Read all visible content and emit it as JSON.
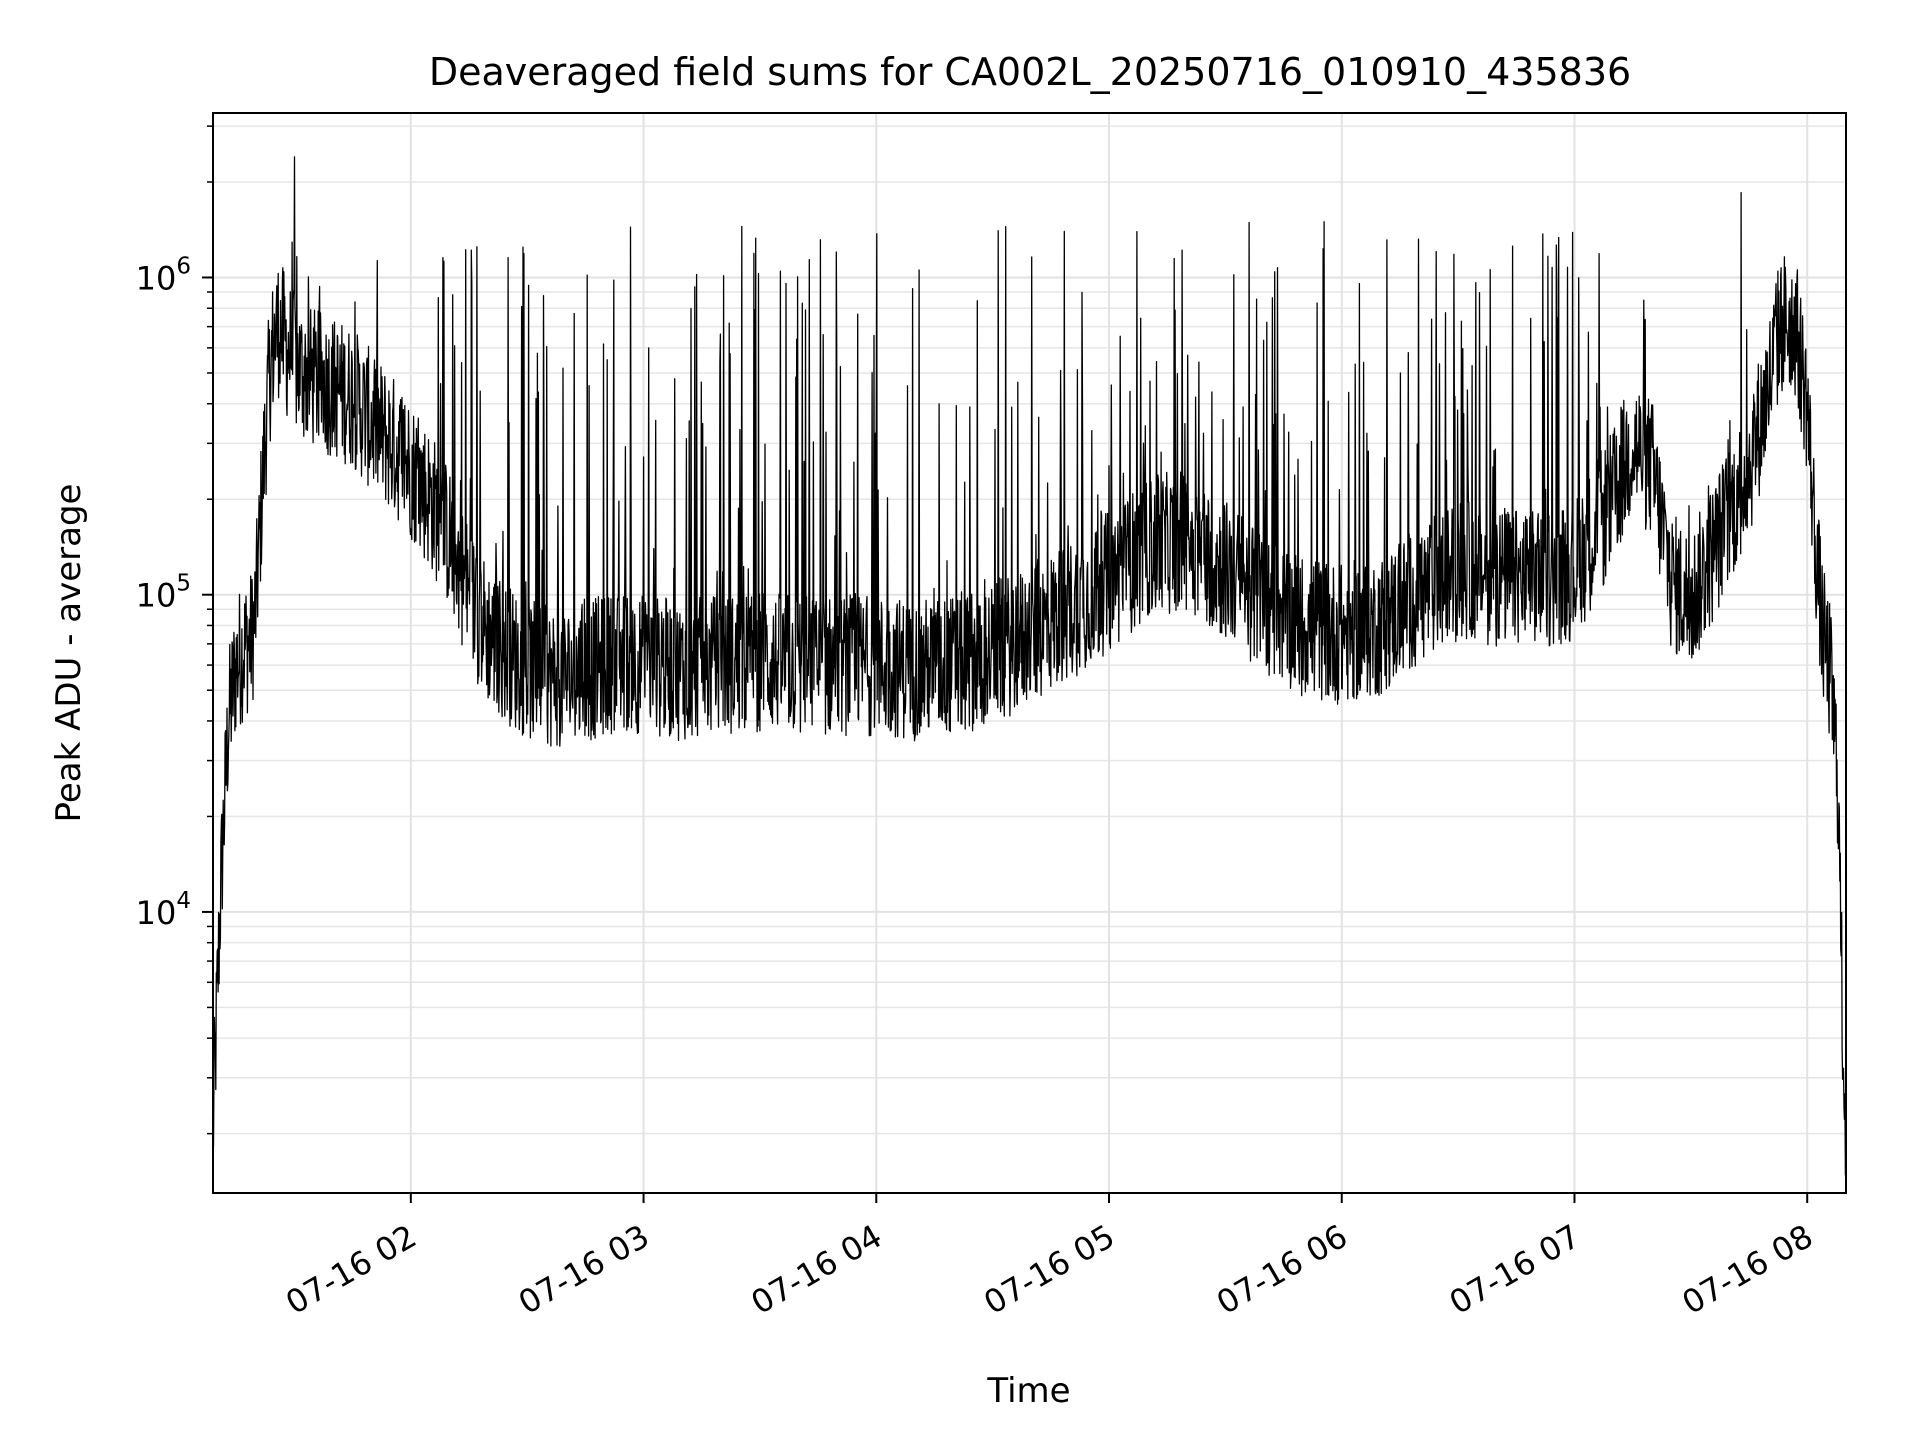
{
  "chart_data": {
    "type": "line",
    "title": "Deaveraged field sums for CA002L_20250716_010910_435836",
    "xlabel": "Time",
    "ylabel": "Peak ADU - average",
    "yscale": "log",
    "grid": true,
    "x_ticks": [
      "07-16 02",
      "07-16 03",
      "07-16 04",
      "07-16 05",
      "07-16 06",
      "07-16 07",
      "07-16 08"
    ],
    "y_ticks": [
      {
        "base": "10",
        "exp": "4",
        "value": 10000
      },
      {
        "base": "10",
        "exp": "5",
        "value": 100000
      },
      {
        "base": "10",
        "exp": "6",
        "value": 1000000
      }
    ],
    "xlim": [
      "2025-07-16 01:09",
      "2025-07-16 08:10"
    ],
    "ylim": [
      1300,
      3300000
    ],
    "line_color": "#000000",
    "series": [
      {
        "x": [
          "2025-07-16 01:09",
          "2025-07-16 01:10",
          "2025-07-16 01:11",
          "2025-07-16 01:12",
          "2025-07-16 01:13",
          "2025-07-16 01:15",
          "2025-07-16 01:17",
          "2025-07-16 01:18",
          "2025-07-16 01:19",
          "2025-07-16 01:20",
          "2025-07-16 01:21",
          "2025-07-16 01:22",
          "2025-07-16 01:23",
          "2025-07-16 01:24",
          "2025-07-16 01:25",
          "2025-07-16 01:26",
          "2025-07-16 01:27",
          "2025-07-16 01:28",
          "2025-07-16 01:30",
          "2025-07-16 01:31",
          "2025-07-16 01:32",
          "2025-07-16 01:35",
          "2025-07-16 01:40",
          "2025-07-16 01:45",
          "2025-07-16 01:50",
          "2025-07-16 01:55",
          "2025-07-16 02:00",
          "2025-07-16 02:05",
          "2025-07-16 02:10",
          "2025-07-16 02:15",
          "2025-07-16 02:20",
          "2025-07-16 02:25",
          "2025-07-16 02:30",
          "2025-07-16 02:35",
          "2025-07-16 02:40",
          "2025-07-16 02:45",
          "2025-07-16 02:50",
          "2025-07-16 02:55",
          "2025-07-16 03:00",
          "2025-07-16 03:10",
          "2025-07-16 03:20",
          "2025-07-16 03:30",
          "2025-07-16 03:40",
          "2025-07-16 03:50",
          "2025-07-16 04:00",
          "2025-07-16 04:10",
          "2025-07-16 04:20",
          "2025-07-16 04:30",
          "2025-07-16 04:40",
          "2025-07-16 04:50",
          "2025-07-16 05:00",
          "2025-07-16 05:10",
          "2025-07-16 05:20",
          "2025-07-16 05:30",
          "2025-07-16 05:40",
          "2025-07-16 05:50",
          "2025-07-16 06:00",
          "2025-07-16 06:10",
          "2025-07-16 06:20",
          "2025-07-16 06:30",
          "2025-07-16 06:40",
          "2025-07-16 06:50",
          "2025-07-16 07:00",
          "2025-07-16 07:10",
          "2025-07-16 07:15",
          "2025-07-16 07:20",
          "2025-07-16 07:25",
          "2025-07-16 07:30",
          "2025-07-16 07:35",
          "2025-07-16 07:40",
          "2025-07-16 07:45",
          "2025-07-16 07:50",
          "2025-07-16 07:53",
          "2025-07-16 07:55",
          "2025-07-16 07:57",
          "2025-07-16 08:00",
          "2025-07-16 08:02",
          "2025-07-16 08:04",
          "2025-07-16 08:06",
          "2025-07-16 08:08",
          "2025-07-16 08:09",
          "2025-07-16 08:10"
        ],
        "y_base": [
          2000,
          5000,
          12000,
          22000,
          40000,
          60000,
          68000,
          70000,
          72000,
          90000,
          150000,
          250000,
          400000,
          550000,
          650000,
          700000,
          650000,
          600000,
          550000,
          520000,
          500000,
          480000,
          450000,
          420000,
          350000,
          300000,
          250000,
          200000,
          150000,
          100000,
          75000,
          65000,
          58000,
          55000,
          55000,
          57000,
          60000,
          62000,
          60000,
          58000,
          60000,
          62000,
          60000,
          60000,
          60000,
          58000,
          60000,
          65000,
          75000,
          90000,
          110000,
          140000,
          150000,
          120000,
          95000,
          80000,
          75000,
          80000,
          100000,
          120000,
          115000,
          110000,
          120000,
          200000,
          300000,
          250000,
          110000,
          95000,
          130000,
          180000,
          250000,
          450000,
          700000,
          750000,
          700000,
          400000,
          150000,
          75000,
          55000,
          25000,
          5000,
          2000
        ],
        "spike_band_max": 1500000,
        "peaks": [
          {
            "x": "2025-07-16 01:30",
            "y": 2400000
          },
          {
            "x": "2025-07-16 07:43",
            "y": 1850000
          }
        ]
      }
    ]
  }
}
